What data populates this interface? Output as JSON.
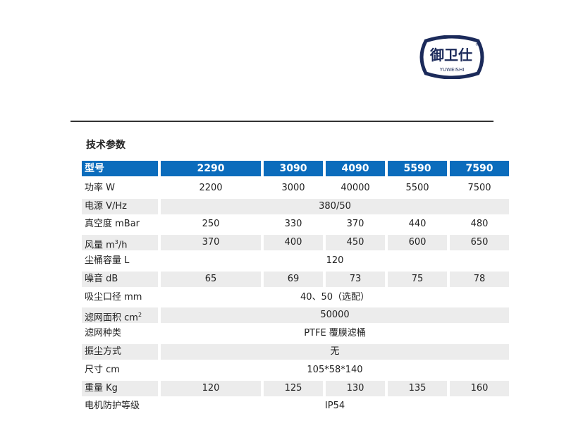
{
  "logo": {
    "text": "御卫仕",
    "latin": "YUWEISHI",
    "registered": "®",
    "color": "#1b2a5a"
  },
  "section_title": "技术参数",
  "colors": {
    "header": "#0b6cbc",
    "shade": "#ececec"
  },
  "table": {
    "header": {
      "label": "型号",
      "models": [
        "2290",
        "3090",
        "4090",
        "5590",
        "7590"
      ]
    },
    "rows": [
      {
        "label": "功率 W",
        "values": [
          "2200",
          "3000",
          "40000",
          "5500",
          "7500"
        ]
      },
      {
        "label": "电源 V/Hz",
        "span": "380/50"
      },
      {
        "label": "真空度 mBar",
        "values": [
          "250",
          "330",
          "370",
          "440",
          "480"
        ]
      },
      {
        "label": "风量 m",
        "sup": "3",
        "suffix": "/h",
        "values": [
          "370",
          "400",
          "450",
          "600",
          "650"
        ]
      },
      {
        "label": "尘桶容量 L",
        "span": "120"
      },
      {
        "label": "噪音 dB",
        "values": [
          "65",
          "69",
          "73",
          "75",
          "78"
        ]
      },
      {
        "label": "吸尘口径 mm",
        "span": "40、50（选配）"
      },
      {
        "label": "滤网面积 cm",
        "sup": "2",
        "span": "50000"
      },
      {
        "label": "滤网种类",
        "span": "PTFE 覆膜滤桶"
      },
      {
        "label": "振尘方式",
        "span": "无"
      },
      {
        "label": "尺寸 cm",
        "span": "105*58*140"
      },
      {
        "label": "重量 Kg",
        "values": [
          "120",
          "125",
          "130",
          "135",
          "160"
        ]
      },
      {
        "label": "电机防护等级",
        "span": "IP54"
      }
    ]
  }
}
